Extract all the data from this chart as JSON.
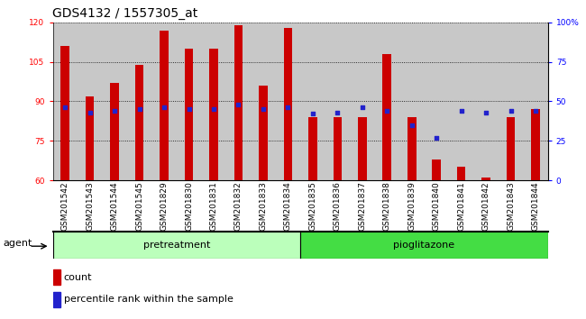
{
  "title": "GDS4132 / 1557305_at",
  "samples": [
    "GSM201542",
    "GSM201543",
    "GSM201544",
    "GSM201545",
    "GSM201829",
    "GSM201830",
    "GSM201831",
    "GSM201832",
    "GSM201833",
    "GSM201834",
    "GSM201835",
    "GSM201836",
    "GSM201837",
    "GSM201838",
    "GSM201839",
    "GSM201840",
    "GSM201841",
    "GSM201842",
    "GSM201843",
    "GSM201844"
  ],
  "counts": [
    111,
    92,
    97,
    104,
    117,
    110,
    110,
    119,
    96,
    118,
    84,
    84,
    84,
    108,
    84,
    68,
    65,
    61,
    84,
    87
  ],
  "percentile_ranks": [
    46,
    43,
    44,
    45,
    46,
    45,
    45,
    48,
    45,
    46,
    42,
    43,
    46,
    44,
    35,
    27,
    44,
    43,
    44,
    44
  ],
  "group1_label": "pretreatment",
  "group1_count": 10,
  "group2_label": "pioglitazone",
  "group2_count": 10,
  "agent_label": "agent",
  "ylim_left": [
    60,
    120
  ],
  "ylim_right": [
    0,
    100
  ],
  "yticks_left": [
    60,
    75,
    90,
    105,
    120
  ],
  "yticks_right": [
    0,
    25,
    50,
    75,
    100
  ],
  "bar_color": "#cc0000",
  "dot_color": "#2222cc",
  "bg_color": "#c8c8c8",
  "plot_bg": "#ffffff",
  "group1_color": "#bbffbb",
  "group2_color": "#44dd44",
  "legend_count_label": "count",
  "legend_pct_label": "percentile rank within the sample",
  "title_fontsize": 10,
  "tick_fontsize": 6.5,
  "label_fontsize": 8
}
